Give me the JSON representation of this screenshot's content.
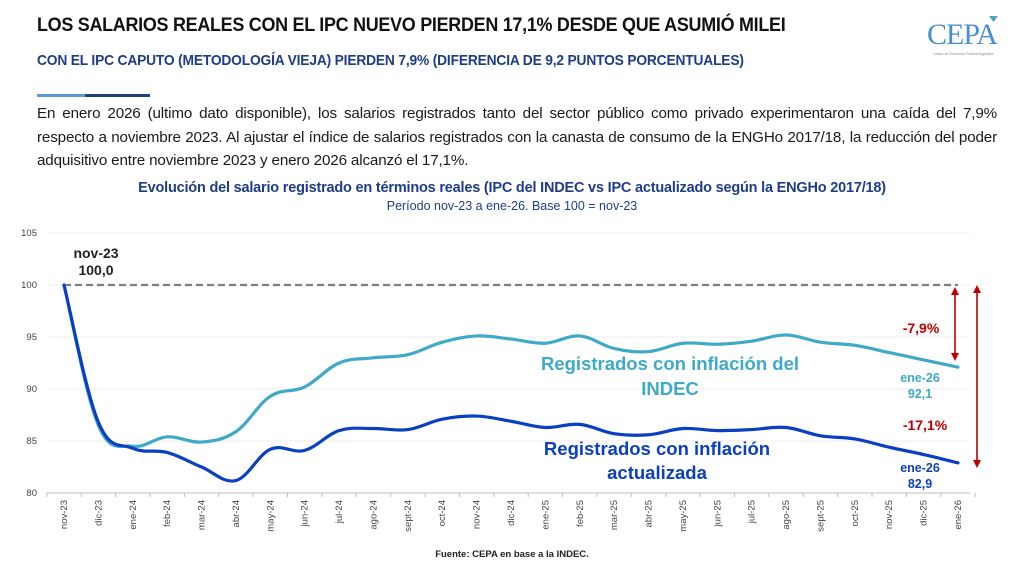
{
  "header": {
    "title": "LOS SALARIOS REALES CON EL IPC NUEVO PIERDEN 17,1% DESDE QUE ASUMIÓ MILEI",
    "subtitle": "CON EL IPC CAPUTO (METODOLOGÍA VIEJA) PIERDEN 7,9% (DIFERENCIA DE 9,2 PUNTOS PORCENTUALES)",
    "logo_text": "CEPA",
    "logo_subtext": "Centro de Economía Política Argentina"
  },
  "body_text": "En enero 2026 (ultimo dato disponible), los salarios registrados tanto del sector público como privado experimentaron una caída del 7,9% respecto a noviembre 2023. Al ajustar el índice de salarios registrados con la canasta de consumo de la ENGHo 2017/18, la reducción del poder adquisitivo entre noviembre 2023 y enero 2026 alcanzó el 17,1%.",
  "footer": {
    "source": "Fuente: CEPA en base a la INDEC."
  },
  "colors": {
    "indec": "#3eaac8",
    "actualizada": "#0a3fc4",
    "annotation_red": "#c00000",
    "baseline": "#7f7f7f",
    "title_blue": "#1f3c88"
  },
  "chart_data": {
    "type": "line",
    "title": "Evolución del salario registrado en términos reales (IPC del INDEC vs IPC actualizado según la ENGHo 2017/18)",
    "subtitle": "Período nov-23 a ene-26. Base 100 = nov-23",
    "xlabel": "",
    "ylabel": "",
    "ylim": [
      80,
      105
    ],
    "yticks": [
      80,
      85,
      90,
      95,
      100,
      105
    ],
    "grid": true,
    "categories": [
      "nov-23",
      "dic-23",
      "ene-24",
      "feb-24",
      "mar-24",
      "abr-24",
      "may-24",
      "jun-24",
      "jul-24",
      "ago-24",
      "sept-24",
      "oct-24",
      "nov-24",
      "dic-24",
      "ene-25",
      "feb-25",
      "mar-25",
      "abr-25",
      "may-25",
      "jun-25",
      "jul-25",
      "ago-25",
      "sept-25",
      "oct-25",
      "nov-25",
      "dic-25",
      "ene-26"
    ],
    "series": [
      {
        "name": "Registrados con inflación del INDEC",
        "label_line1": "Registrados con inflación del",
        "label_line2": "INDEC",
        "values": [
          100.0,
          86.5,
          84.5,
          85.4,
          84.9,
          85.9,
          89.3,
          90.2,
          92.5,
          93.0,
          93.3,
          94.5,
          95.1,
          94.8,
          94.4,
          95.1,
          93.9,
          93.6,
          94.4,
          94.3,
          94.6,
          95.2,
          94.5,
          94.2,
          93.5,
          92.8,
          92.1
        ]
      },
      {
        "name": "Registrados con inflación actualizada",
        "label_line1": "Registrados con inflación",
        "label_line2": "actualizada",
        "values": [
          100.0,
          86.8,
          84.3,
          83.9,
          82.5,
          81.2,
          84.2,
          84.1,
          86.0,
          86.2,
          86.1,
          87.1,
          87.4,
          86.9,
          86.3,
          86.6,
          85.7,
          85.6,
          86.2,
          86.0,
          86.1,
          86.3,
          85.5,
          85.2,
          84.4,
          83.7,
          82.9
        ]
      }
    ],
    "baseline": {
      "value": 100,
      "style": "dashed"
    },
    "annotations": {
      "start_label_line1": "nov-23",
      "start_label_line2": "100,0",
      "end_indec_line1": "ene-26",
      "end_indec_line2": "92,1",
      "end_actualizada_line1": "ene-26",
      "end_actualizada_line2": "82,9",
      "drop_indec": "-7,9%",
      "drop_actualizada": "-17,1%"
    }
  }
}
